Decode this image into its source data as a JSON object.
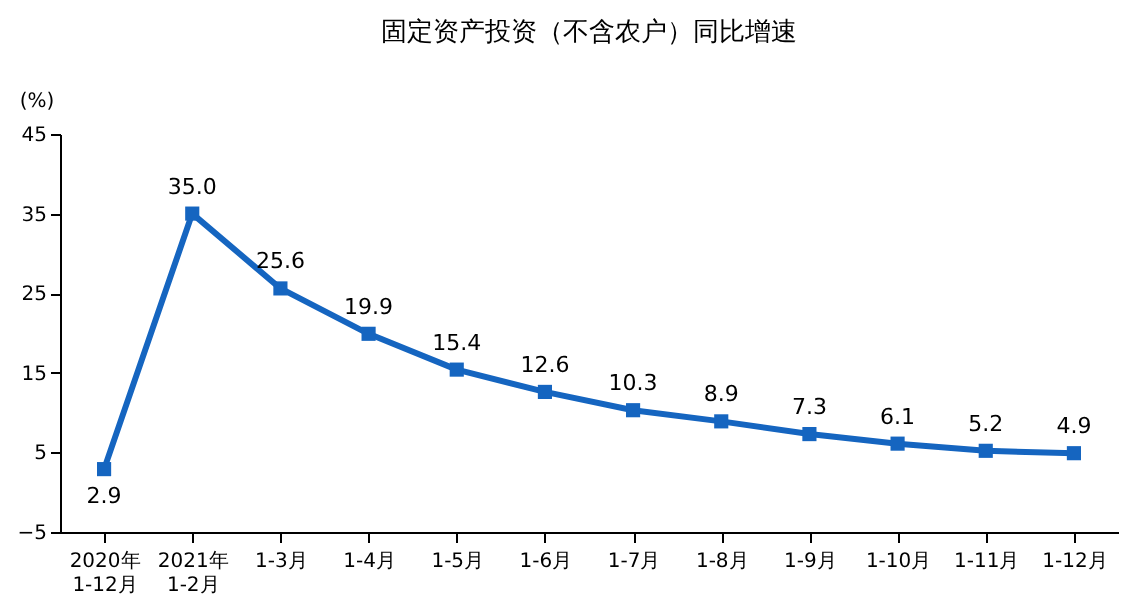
{
  "chart_data": {
    "type": "line",
    "title": "固定资产投资（不含农户）同比增速",
    "ylabel": "(%)",
    "categories": [
      "2020年\n1-12月",
      "2021年\n1-2月",
      "1-3月",
      "1-4月",
      "1-5月",
      "1-6月",
      "1-7月",
      "1-8月",
      "1-9月",
      "1-10月",
      "1-11月",
      "1-12月"
    ],
    "series": [
      {
        "color": "#1565c0",
        "values": [
          2.9,
          35.0,
          25.6,
          19.9,
          15.4,
          12.6,
          10.3,
          8.9,
          7.3,
          6.1,
          5.2,
          4.9
        ]
      }
    ],
    "value_labels": [
      "2.9",
      "35.0",
      "25.6",
      "19.9",
      "15.4",
      "12.6",
      "10.3",
      "8.9",
      "7.3",
      "6.1",
      "5.2",
      "4.9"
    ],
    "ylim": [
      -5,
      45
    ],
    "yticks": [
      -5,
      5,
      15,
      25,
      35,
      45
    ],
    "grid": false,
    "marker": "square",
    "line_style": "solid"
  }
}
